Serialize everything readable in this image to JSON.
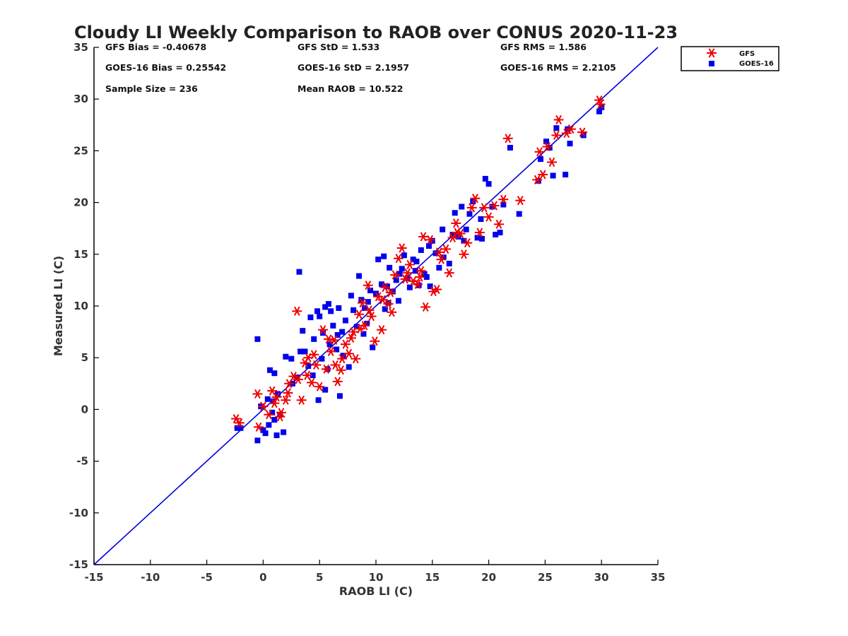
{
  "chart_data": {
    "type": "scatter",
    "title": "Cloudy LI Weekly Comparison to RAOB over CONUS 2020-11-23",
    "xlabel": "RAOB LI (C)",
    "ylabel": "Measured LI (C)",
    "xlim": [
      -15,
      35
    ],
    "ylim": [
      -15,
      35
    ],
    "xticks": [
      "-15",
      "-10",
      "-5",
      "0",
      "5",
      "10",
      "15",
      "20",
      "25",
      "30",
      "35"
    ],
    "yticks": [
      "-15",
      "-10",
      "-5",
      "0",
      "5",
      "10",
      "15",
      "20",
      "25",
      "30",
      "35"
    ],
    "grid": false,
    "legend_position": "top-right, outside plot",
    "reference_line": {
      "x": [
        -15,
        35
      ],
      "y": [
        -15,
        35
      ],
      "color": "#0000dd"
    },
    "stats": [
      "GFS Bias = -0.40678",
      "GFS StD = 1.533",
      "GFS RMS = 1.586",
      "GOES-16 Bias = 0.25542",
      "GOES-16 StD = 2.1957",
      "GOES-16 RMS = 2.2105",
      "Sample Size = 236",
      "Mean RAOB = 10.522"
    ],
    "series": [
      {
        "name": "GOES-16",
        "color": "#0000ee",
        "marker": "square",
        "points": [
          [
            -0.5,
            -3.0
          ],
          [
            -0.5,
            6.8
          ],
          [
            -2.3,
            -1.8
          ],
          [
            -2,
            -1.8
          ],
          [
            0,
            -2
          ],
          [
            0.2,
            -2.3
          ],
          [
            0.5,
            -1.5
          ],
          [
            0.8,
            -0.3
          ],
          [
            1,
            -1
          ],
          [
            1.2,
            -2.5
          ],
          [
            1.5,
            -0.5
          ],
          [
            1.8,
            -2.2
          ],
          [
            0.6,
            3.8
          ],
          [
            1,
            3.5
          ],
          [
            0.4,
            1.0
          ],
          [
            -0.2,
            0.3
          ],
          [
            0.9,
            0.8
          ],
          [
            1.3,
            1.5
          ],
          [
            2,
            5.1
          ],
          [
            2.5,
            4.9
          ],
          [
            3.2,
            13.3
          ],
          [
            3.5,
            7.6
          ],
          [
            3.3,
            5.6
          ],
          [
            3.7,
            5.6
          ],
          [
            4,
            4.2
          ],
          [
            4.2,
            8.9
          ],
          [
            4.5,
            6.8
          ],
          [
            4.8,
            9.5
          ],
          [
            5,
            9.0
          ],
          [
            5.2,
            4.9
          ],
          [
            5.3,
            7.4
          ],
          [
            5.5,
            9.9
          ],
          [
            5.8,
            10.2
          ],
          [
            6,
            9.5
          ],
          [
            6.2,
            8.1
          ],
          [
            6.5,
            5.8
          ],
          [
            6.7,
            9.8
          ],
          [
            7,
            7.5
          ],
          [
            7.3,
            8.6
          ],
          [
            7.6,
            4.1
          ],
          [
            7.8,
            11.0
          ],
          [
            8,
            9.6
          ],
          [
            8.3,
            8.0
          ],
          [
            8.5,
            12.9
          ],
          [
            8.7,
            10.6
          ],
          [
            9,
            9.8
          ],
          [
            9.3,
            10.4
          ],
          [
            9.5,
            11.5
          ],
          [
            9.7,
            6.0
          ],
          [
            10,
            11.2
          ],
          [
            10.2,
            14.5
          ],
          [
            10.5,
            12.1
          ],
          [
            10.7,
            14.8
          ],
          [
            11,
            11.9
          ],
          [
            11.2,
            13.7
          ],
          [
            11.5,
            11.4
          ],
          [
            11.8,
            12.5
          ],
          [
            12,
            10.5
          ],
          [
            12.3,
            13.6
          ],
          [
            12.5,
            14.9
          ],
          [
            12.8,
            12.7
          ],
          [
            13,
            11.8
          ],
          [
            13.3,
            14.5
          ],
          [
            13.5,
            13.4
          ],
          [
            13.8,
            12.0
          ],
          [
            14,
            15.4
          ],
          [
            14.3,
            13.1
          ],
          [
            14.5,
            12.8
          ],
          [
            14.8,
            11.9
          ],
          [
            15,
            16.3
          ],
          [
            15.3,
            15.1
          ],
          [
            15.6,
            13.7
          ],
          [
            16,
            14.7
          ],
          [
            16.5,
            14.1
          ],
          [
            16.8,
            16.9
          ],
          [
            17,
            19.0
          ],
          [
            17.3,
            16.7
          ],
          [
            17.6,
            19.6
          ],
          [
            18,
            17.4
          ],
          [
            18.3,
            18.9
          ],
          [
            18.6,
            20.1
          ],
          [
            19,
            16.6
          ],
          [
            19.4,
            16.5
          ],
          [
            19.7,
            22.3
          ],
          [
            20,
            21.8
          ],
          [
            20.3,
            19.6
          ],
          [
            20.6,
            16.9
          ],
          [
            21,
            17.1
          ],
          [
            21.3,
            19.8
          ],
          [
            21.9,
            25.3
          ],
          [
            22.7,
            18.9
          ],
          [
            24.4,
            22.1
          ],
          [
            24.6,
            24.2
          ],
          [
            25.1,
            25.9
          ],
          [
            25.4,
            25.3
          ],
          [
            25.7,
            22.6
          ],
          [
            26,
            27.2
          ],
          [
            26.8,
            22.7
          ],
          [
            27.2,
            25.7
          ],
          [
            27,
            27.1
          ],
          [
            28.4,
            26.5
          ],
          [
            29.8,
            28.8
          ],
          [
            30,
            29.2
          ],
          [
            5.5,
            1.9
          ],
          [
            4.9,
            0.9
          ],
          [
            6.8,
            1.3
          ],
          [
            7.1,
            5.2
          ],
          [
            6.6,
            7.2
          ],
          [
            5.9,
            6.3
          ],
          [
            3.0,
            3.1
          ],
          [
            2.6,
            2.5
          ],
          [
            4.4,
            3.3
          ],
          [
            5.7,
            3.9
          ],
          [
            8.9,
            7.3
          ],
          [
            9.2,
            8.3
          ],
          [
            10.8,
            9.7
          ],
          [
            11.1,
            10.3
          ],
          [
            12.1,
            13.1
          ],
          [
            13.6,
            14.3
          ],
          [
            14.7,
            15.8
          ],
          [
            15.9,
            17.4
          ],
          [
            17.8,
            16.3
          ],
          [
            19.3,
            18.4
          ]
        ]
      },
      {
        "name": "GFS",
        "color": "#ee0000",
        "marker": "asterisk",
        "points": [
          [
            -2.4,
            -0.9
          ],
          [
            -2.1,
            -1.3
          ],
          [
            -0.4,
            -1.7
          ],
          [
            -0.5,
            1.5
          ],
          [
            0,
            0.3
          ],
          [
            0.5,
            -0.5
          ],
          [
            0.8,
            1.8
          ],
          [
            1.2,
            1.2
          ],
          [
            1.6,
            -0.3
          ],
          [
            2,
            0.9
          ],
          [
            2.3,
            2.5
          ],
          [
            2.7,
            3.2
          ],
          [
            3,
            9.5
          ],
          [
            3.4,
            0.9
          ],
          [
            3.7,
            4.5
          ],
          [
            4,
            5.0
          ],
          [
            4.3,
            2.6
          ],
          [
            4.7,
            4.3
          ],
          [
            5,
            2.2
          ],
          [
            5.3,
            7.7
          ],
          [
            5.6,
            3.9
          ],
          [
            6,
            5.6
          ],
          [
            6.3,
            6.7
          ],
          [
            6.6,
            2.7
          ],
          [
            7,
            4.9
          ],
          [
            7.3,
            6.3
          ],
          [
            7.6,
            5.4
          ],
          [
            8,
            7.5
          ],
          [
            8.2,
            4.9
          ],
          [
            8.5,
            9.2
          ],
          [
            8.8,
            10.3
          ],
          [
            9,
            8.1
          ],
          [
            9.3,
            12.0
          ],
          [
            9.6,
            9.0
          ],
          [
            9.9,
            6.6
          ],
          [
            10.2,
            10.9
          ],
          [
            10.5,
            7.7
          ],
          [
            10.8,
            11.8
          ],
          [
            11.1,
            10.2
          ],
          [
            11.4,
            9.4
          ],
          [
            11.7,
            13.0
          ],
          [
            12,
            14.6
          ],
          [
            12.3,
            15.6
          ],
          [
            12.6,
            12.6
          ],
          [
            13,
            14.0
          ],
          [
            13.3,
            12.4
          ],
          [
            13.7,
            12.1
          ],
          [
            14,
            13.4
          ],
          [
            14.2,
            16.7
          ],
          [
            14.4,
            9.9
          ],
          [
            14.8,
            16.4
          ],
          [
            15.1,
            11.4
          ],
          [
            15.4,
            11.6
          ],
          [
            15.8,
            14.5
          ],
          [
            16.2,
            15.5
          ],
          [
            16.5,
            13.2
          ],
          [
            16.8,
            16.6
          ],
          [
            17.1,
            18.0
          ],
          [
            17.5,
            17.0
          ],
          [
            17.8,
            15.0
          ],
          [
            18.1,
            16.1
          ],
          [
            18.5,
            19.5
          ],
          [
            18.8,
            20.4
          ],
          [
            19.2,
            17.1
          ],
          [
            19.6,
            19.5
          ],
          [
            20.0,
            18.6
          ],
          [
            20.5,
            19.7
          ],
          [
            20.9,
            17.9
          ],
          [
            21.3,
            20.3
          ],
          [
            21.7,
            26.2
          ],
          [
            22.8,
            20.2
          ],
          [
            24.3,
            22.2
          ],
          [
            24.5,
            24.9
          ],
          [
            24.8,
            22.7
          ],
          [
            25.2,
            25.4
          ],
          [
            25.6,
            23.9
          ],
          [
            26,
            26.5
          ],
          [
            26.2,
            28.0
          ],
          [
            26.9,
            26.7
          ],
          [
            27.3,
            27.1
          ],
          [
            28.3,
            26.8
          ],
          [
            29.8,
            29.9
          ],
          [
            29.9,
            29.5
          ],
          [
            1.0,
            0.6
          ],
          [
            1.5,
            -0.7
          ],
          [
            2.2,
            1.6
          ],
          [
            3.1,
            2.9
          ],
          [
            3.9,
            3.3
          ],
          [
            4.5,
            5.3
          ],
          [
            5.8,
            6.8
          ],
          [
            6.4,
            4.3
          ],
          [
            6.9,
            3.8
          ],
          [
            7.8,
            6.9
          ],
          [
            8.6,
            7.8
          ],
          [
            9.4,
            9.6
          ],
          [
            10.6,
            10.6
          ],
          [
            11.3,
            11.3
          ],
          [
            12.8,
            13.2
          ],
          [
            13.9,
            12.8
          ],
          [
            15.6,
            15.2
          ],
          [
            17.2,
            17.1
          ]
        ]
      }
    ]
  }
}
